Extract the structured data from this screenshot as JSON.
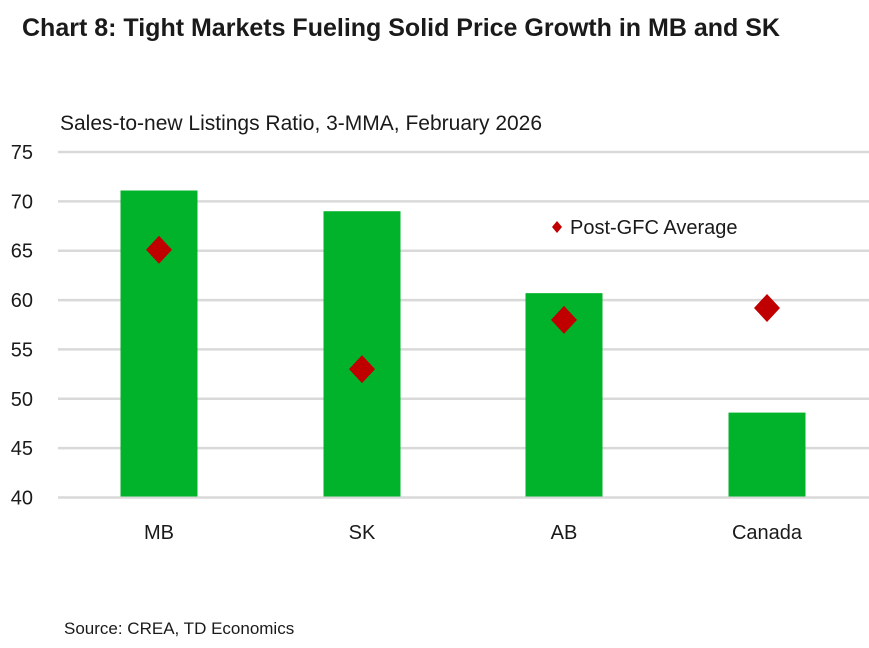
{
  "chart_data": {
    "type": "bar",
    "title": "Chart 8: Tight Markets Fueling Solid Price Growth in MB and SK",
    "subtitle": "Sales-to-new Listings Ratio, 3-MMA, February 2026",
    "categories": [
      "MB",
      "SK",
      "AB",
      "Canada"
    ],
    "series": [
      {
        "type": "bar",
        "values": [
          71.1,
          69.0,
          60.7,
          48.6
        ],
        "color": "#00b32a"
      },
      {
        "type": "scatter",
        "name": "Post-GFC Average",
        "marker": "diamond",
        "values": [
          65.1,
          53.0,
          58.0,
          59.2
        ],
        "color": "#c00000"
      }
    ],
    "ylim": [
      40,
      75
    ],
    "yticks": [
      "40",
      "45",
      "50",
      "55",
      "60",
      "65",
      "70",
      "75"
    ],
    "grid": true,
    "legend": "top-right",
    "source": "Source: CREA, TD Economics"
  }
}
